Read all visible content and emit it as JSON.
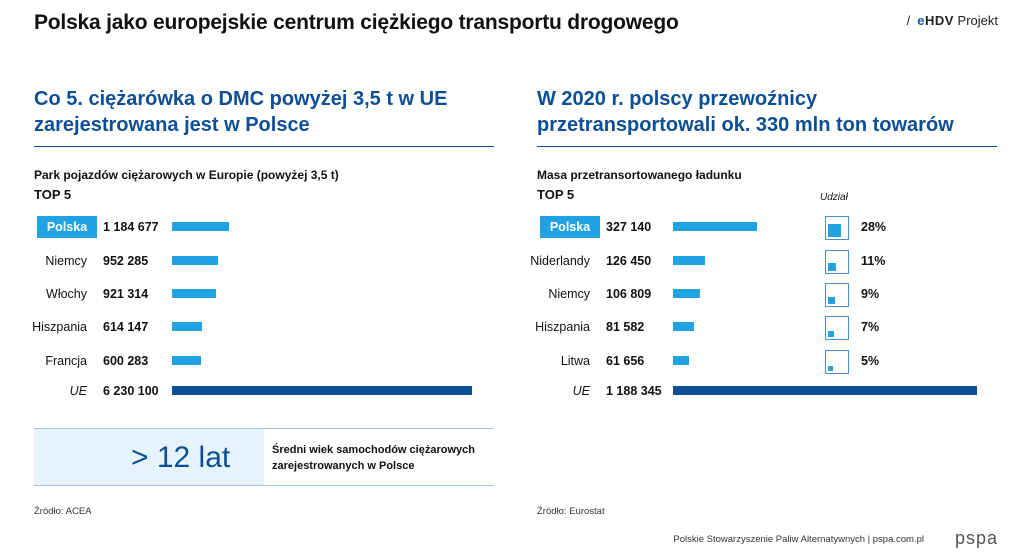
{
  "header": {
    "title": "Polska jako europejskie centrum ciężkiego transportu drogowego",
    "brand_slash": "/",
    "brand_logo_e": "e",
    "brand_logo_rest": "HDV",
    "brand_suffix": "Projekt"
  },
  "colors": {
    "accent": "#1fa3e3",
    "dark": "#0d4f96",
    "highlight_bg": "#e4f3fc"
  },
  "chart_data": [
    {
      "type": "bar",
      "title": "Co 5. ciężarówka o DMC powyżej 3,5 t w UE zarejestrowana jest w Polsce",
      "subtitle": "Park pojazdów ciężarowych w Europie (powyżej 3,5 t)",
      "top_label": "TOP 5",
      "categories": [
        "Polska",
        "Niemcy",
        "Włochy",
        "Hiszpania",
        "Francja",
        "UE"
      ],
      "values": [
        1184677,
        952285,
        921314,
        614147,
        600283,
        6230100
      ],
      "value_labels": [
        "1 184 677",
        "952 285",
        "921 314",
        "614 147",
        "600 283",
        "6 230 100"
      ],
      "orientation": "horizontal",
      "source": "Źródło: ACEA"
    },
    {
      "type": "bar",
      "title": "W 2020 r. polscy przewoźnicy przetransportowali ok. 330 mln ton towarów",
      "subtitle": "Masa przetransortowanego ładunku",
      "top_label": "TOP 5",
      "categories": [
        "Polska",
        "Niderlandy",
        "Niemcy",
        "Hiszpania",
        "Litwa",
        "UE"
      ],
      "values": [
        327140,
        126450,
        106809,
        81582,
        61656,
        1188345
      ],
      "value_labels": [
        "327 140",
        "126 450",
        "106 809",
        "81 582",
        "61 656",
        "1 188 345"
      ],
      "orientation": "horizontal",
      "share_header": "Udział",
      "share_values": [
        28,
        11,
        9,
        7,
        5
      ],
      "share_labels": [
        "28%",
        "11%",
        "9%",
        "7%",
        "5%"
      ],
      "source": "Źródło: Eurostat"
    }
  ],
  "age_box": {
    "value": "> 12 lat",
    "description": "Średni wiek samochodów ciężarowych zarejestrowanych w Polsce"
  },
  "footer": {
    "org": "Polskie Stowarzyszenie Paliw Alternatywnych  |  pspa.com.pl",
    "logo": "pspa"
  }
}
